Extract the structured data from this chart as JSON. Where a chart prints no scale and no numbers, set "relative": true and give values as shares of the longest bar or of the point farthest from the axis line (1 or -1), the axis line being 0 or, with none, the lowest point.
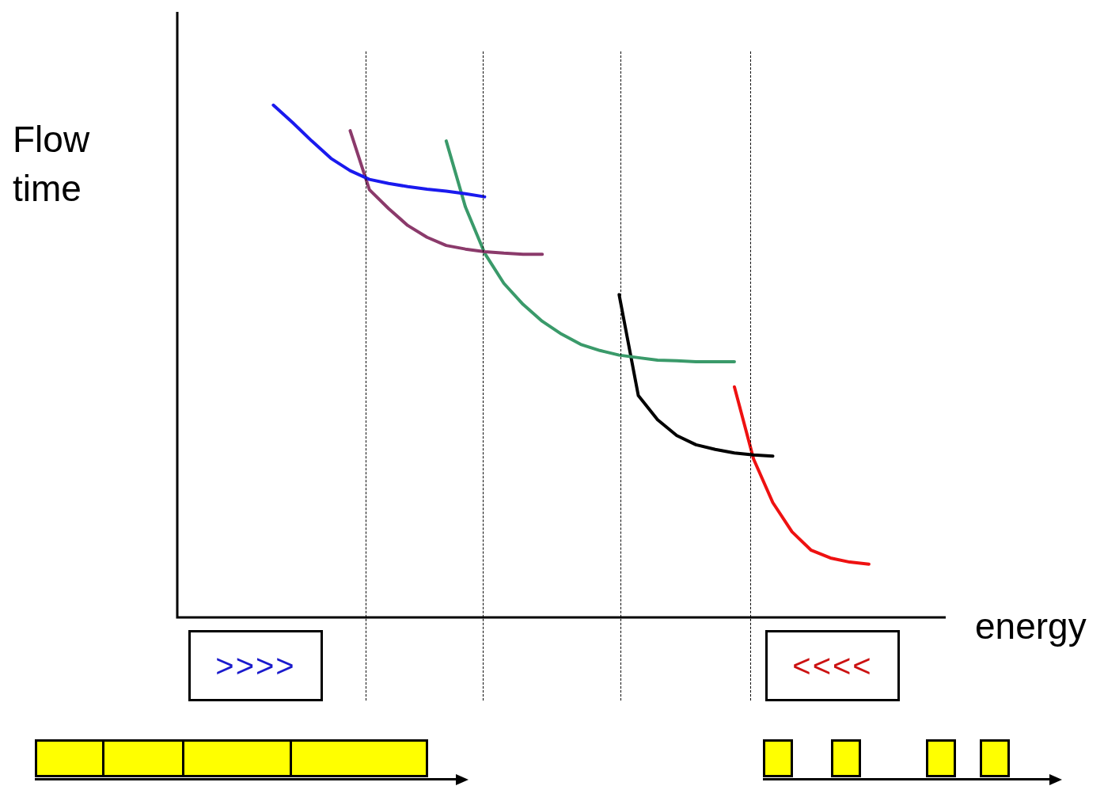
{
  "chart_data": {
    "type": "line",
    "relative": true,
    "ylabel": "Flow time",
    "xlabel": "energy",
    "annotations": [
      ">>>>",
      "<<<<"
    ],
    "grid": "x",
    "categories": [
      null,
      null,
      null,
      null,
      null,
      null,
      null,
      null,
      null,
      null,
      null,
      null,
      null,
      null,
      null,
      null,
      null,
      null,
      null,
      null,
      null,
      null,
      null,
      null,
      null,
      null,
      null,
      null,
      null,
      null,
      null,
      null,
      null,
      null,
      null,
      null,
      null,
      null,
      null,
      null,
      null
    ],
    "series": [
      {
        "color": "#1a1aee",
        "values": [
          null,
          null,
          null,
          null,
          null,
          1,
          0.966,
          0.93,
          0.896,
          0.872,
          0.855,
          0.847,
          0.841,
          0.836,
          0.832,
          0.827,
          0.821,
          null,
          null,
          null,
          null,
          null,
          null,
          null,
          null,
          null,
          null,
          null,
          null,
          null,
          null,
          null,
          null,
          null,
          null,
          null,
          null,
          null,
          null,
          null,
          null
        ]
      },
      {
        "color": "#8b3a6b",
        "values": [
          null,
          null,
          null,
          null,
          null,
          null,
          null,
          null,
          null,
          0.95,
          0.835,
          0.798,
          0.765,
          0.742,
          0.726,
          0.719,
          0.714,
          0.711,
          0.709,
          0.709,
          null,
          null,
          null,
          null,
          null,
          null,
          null,
          null,
          null,
          null,
          null,
          null,
          null,
          null,
          null,
          null,
          null,
          null,
          null,
          null,
          null
        ]
      },
      {
        "color": "#3a9a6a",
        "values": [
          null,
          null,
          null,
          null,
          null,
          null,
          null,
          null,
          null,
          null,
          null,
          null,
          null,
          null,
          0.93,
          0.801,
          0.711,
          0.652,
          0.611,
          0.578,
          0.553,
          0.533,
          0.521,
          0.512,
          0.507,
          0.502,
          0.501,
          0.499,
          0.499,
          0.499,
          null,
          null,
          null,
          null,
          null,
          null,
          null,
          null,
          null,
          null,
          null
        ]
      },
      {
        "color": "#000000",
        "values": [
          null,
          null,
          null,
          null,
          null,
          null,
          null,
          null,
          null,
          null,
          null,
          null,
          null,
          null,
          null,
          null,
          null,
          null,
          null,
          null,
          null,
          null,
          null,
          0.63,
          0.433,
          0.386,
          0.355,
          0.337,
          0.328,
          0.321,
          0.317,
          0.315,
          null,
          null,
          null,
          null,
          null,
          null,
          null,
          null,
          null
        ]
      },
      {
        "color": "#ee1111",
        "values": [
          null,
          null,
          null,
          null,
          null,
          null,
          null,
          null,
          null,
          null,
          null,
          null,
          null,
          null,
          null,
          null,
          null,
          null,
          null,
          null,
          null,
          null,
          null,
          null,
          null,
          null,
          null,
          null,
          null,
          0.45,
          0.309,
          0.224,
          0.167,
          0.131,
          0.116,
          0.108,
          0.104,
          null,
          null,
          null,
          null
        ]
      }
    ]
  }
}
